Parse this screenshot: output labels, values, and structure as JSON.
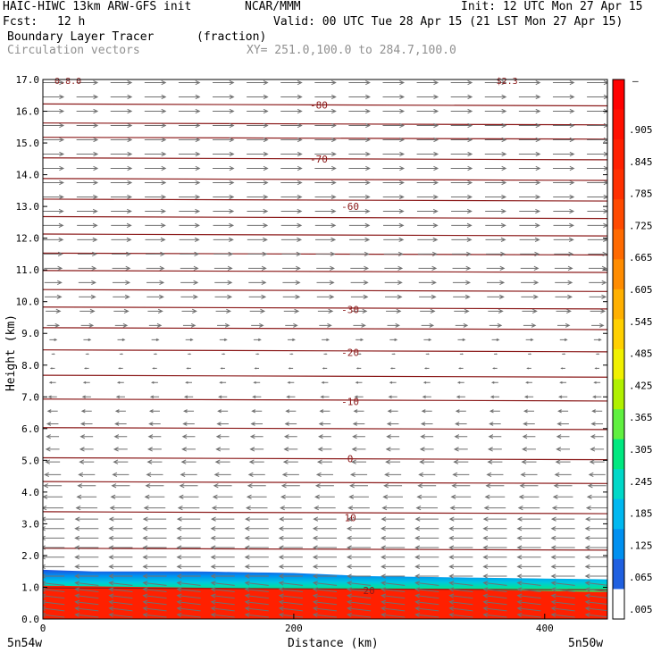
{
  "header": {
    "model": "HAIC-HIWC 13km ARW-GFS init",
    "org": "NCAR/MMM",
    "init": "Init: 12 UTC Mon 27 Apr 15",
    "fcst_label": "Fcst:",
    "fcst_value": "12 h",
    "valid": "Valid: 00 UTC Tue 28 Apr 15 (21 LST Mon 27 Apr 15)",
    "field": "Boundary Layer Tracer",
    "units": "(fraction)",
    "vectors": "Circulation vectors",
    "xy": "XY= 251.0,100.0 to 284.7,100.0"
  },
  "axes": {
    "ylabel": "Height (km)",
    "xlabel": "Distance (km)",
    "left_end": "5n54w",
    "right_end": "5n50w"
  },
  "colorbar": {
    "top_label": "–",
    "labels": [
      ".905",
      ".845",
      ".785",
      ".725",
      ".665",
      ".605",
      ".545",
      ".485",
      ".425",
      ".365",
      ".305",
      ".245",
      ".185",
      ".125",
      ".065",
      ".005"
    ]
  },
  "chart_data": {
    "type": "heatmap",
    "title": "Boundary Layer Tracer (fraction)",
    "xlabel": "Distance (km)",
    "ylabel": "Height (km)",
    "xlim": [
      0,
      450
    ],
    "ylim": [
      0,
      17
    ],
    "x_ticks": [
      0,
      200,
      400
    ],
    "x_tick_labels": [
      "0",
      "200",
      "400"
    ],
    "y_ticks": [
      0,
      1,
      2,
      3,
      4,
      5,
      6,
      7,
      8,
      9,
      10,
      11,
      12,
      13,
      14,
      15,
      16,
      17
    ],
    "y_tick_labels": [
      "0.0",
      "1.0",
      "2.0",
      "3.0",
      "4.0",
      "5.0",
      "6.0",
      "7.0",
      "8.0",
      "9.0",
      "10.0",
      "11.0",
      "12.0",
      "13.0",
      "14.0",
      "15.0",
      "16.0",
      "17.0"
    ],
    "tracer_top_km": [
      [
        0,
        1.55
      ],
      [
        40,
        1.5
      ],
      [
        120,
        1.5
      ],
      [
        200,
        1.45
      ],
      [
        260,
        1.35
      ],
      [
        350,
        1.3
      ],
      [
        450,
        1.25
      ]
    ],
    "saturated_top_km": [
      [
        0,
        1.05
      ],
      [
        100,
        1.0
      ],
      [
        200,
        0.95
      ],
      [
        300,
        0.95
      ],
      [
        450,
        0.85
      ]
    ],
    "contour_labels": [
      {
        "text": "-80",
        "x": 220,
        "y": 16.2
      },
      {
        "text": "-70",
        "x": 220,
        "y": 14.5
      },
      {
        "text": "-60",
        "x": 245,
        "y": 13.0
      },
      {
        "text": "-30",
        "x": 245,
        "y": 9.75
      },
      {
        "text": "-20",
        "x": 245,
        "y": 8.4
      },
      {
        "text": "-10",
        "x": 245,
        "y": 6.85
      },
      {
        "text": "0",
        "x": 245,
        "y": 5.05
      },
      {
        "text": "10",
        "x": 245,
        "y": 3.2
      },
      {
        "text": "20",
        "x": 260,
        "y": 0.9
      }
    ],
    "corner_labels": [
      {
        "text": "0.8.0",
        "x": 20,
        "y": 16.95
      },
      {
        "text": "$2.3",
        "x": 370,
        "y": 16.95
      }
    ],
    "isotherm_heights_km": [
      0.95,
      2.2,
      3.35,
      4.3,
      5.05,
      6.0,
      6.9,
      7.65,
      8.45,
      9.15,
      9.8,
      10.35,
      10.95,
      11.5,
      12.1,
      12.65,
      13.2,
      13.85,
      14.5,
      15.15,
      15.6,
      16.2
    ],
    "vector_rows_km": [
      0.1,
      0.3,
      0.5,
      0.7,
      0.9,
      1.1,
      1.35,
      1.65,
      1.95,
      2.25,
      2.55,
      2.85,
      3.15,
      3.5,
      3.85,
      4.2,
      4.55,
      4.95,
      5.35,
      5.75,
      6.15,
      6.55,
      7.0,
      7.45,
      7.9,
      8.35,
      8.8,
      9.25,
      9.7,
      10.15,
      10.6,
      11.05,
      11.5,
      11.95,
      12.4,
      12.85,
      13.3,
      13.75,
      14.2,
      14.65,
      15.1,
      15.55,
      16.0,
      16.45,
      16.9
    ],
    "vector_u_by_height": [
      [
        0,
        -1.0
      ],
      [
        1.0,
        -1.0
      ],
      [
        2.0,
        -1.0
      ],
      [
        3.0,
        -1.0
      ],
      [
        4.0,
        -0.8
      ],
      [
        5.0,
        -0.6
      ],
      [
        6.0,
        -0.5
      ],
      [
        7.0,
        -0.35
      ],
      [
        8.0,
        -0.15
      ],
      [
        8.6,
        0.15
      ],
      [
        9.0,
        0.45
      ],
      [
        10.0,
        0.7
      ],
      [
        11.0,
        0.75
      ],
      [
        12.0,
        0.85
      ],
      [
        14.0,
        0.9
      ],
      [
        17.0,
        0.9
      ]
    ],
    "vector_w_low": -0.15
  }
}
